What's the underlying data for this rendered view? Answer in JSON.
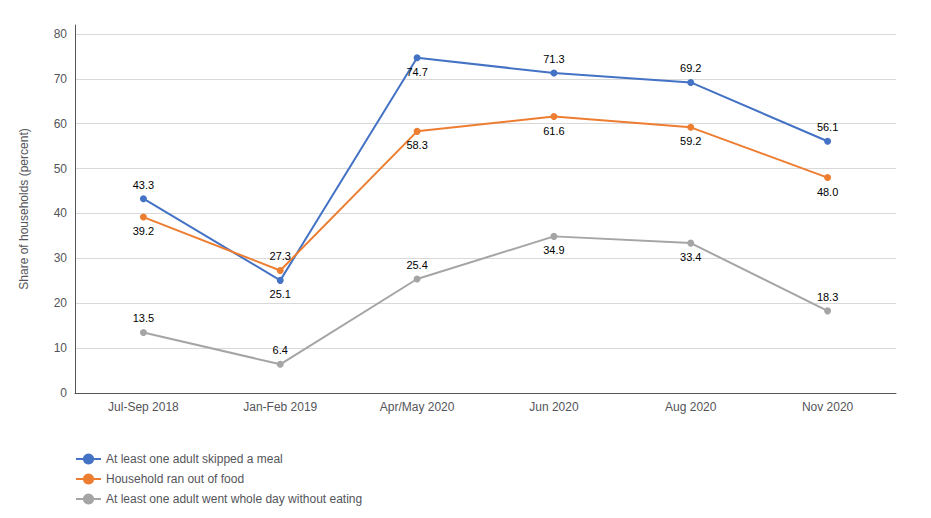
{
  "chart_data": {
    "type": "line",
    "categories": [
      "Jul-Sep 2018",
      "Jan-Feb 2019",
      "Apr/May 2020",
      "Jun 2020",
      "Aug 2020",
      "Nov 2020"
    ],
    "series": [
      {
        "name": "At least one adult skipped a meal",
        "color": "#4472C4",
        "values": [
          43.3,
          25.1,
          74.7,
          71.3,
          69.2,
          56.1
        ],
        "value_labels": [
          "43.3",
          "25.1",
          "74.7",
          "71.3",
          "69.2",
          "56.1"
        ]
      },
      {
        "name": "Household ran out of food",
        "color": "#ED7D31",
        "values": [
          39.2,
          27.3,
          58.3,
          61.6,
          59.2,
          48.0
        ],
        "value_labels": [
          "39.2",
          "27.3",
          "58.3",
          "61.6",
          "59.2",
          "48.0"
        ]
      },
      {
        "name": "At least one adult went whole day without eating",
        "color": "#A5A5A5",
        "values": [
          13.5,
          6.4,
          25.4,
          34.9,
          33.4,
          18.3
        ],
        "value_labels": [
          "13.5",
          "6.4",
          "25.4",
          "34.9",
          "33.4",
          "18.3"
        ]
      }
    ],
    "ylabel": "Share of households (percent)",
    "ylim": [
      0,
      82
    ],
    "yticks": [
      0,
      10,
      20,
      30,
      40,
      50,
      60,
      70,
      80
    ],
    "grid": true,
    "legend": "lower left",
    "data_labels": true,
    "marker": "circle"
  }
}
